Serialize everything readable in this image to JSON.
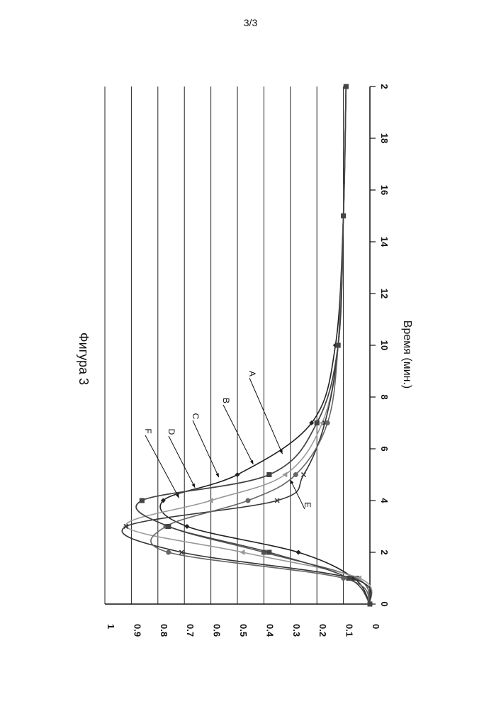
{
  "page_number": "3/3",
  "chart_data": {
    "type": "line",
    "title": "Фигура 3",
    "xlabel": "Время (мин.)",
    "ylabel": "",
    "xlim": [
      0,
      20
    ],
    "ylim": [
      0,
      1
    ],
    "x_ticks": [
      "0",
      "2",
      "4",
      "6",
      "8",
      "10",
      "12",
      "14",
      "16",
      "18",
      "2"
    ],
    "y_ticks": [
      "0",
      "0.1",
      "0.2",
      "0.3",
      "0.4",
      "0.5",
      "0.6",
      "0.7",
      "0.8",
      "0.9",
      "1"
    ],
    "grid": "horizontal",
    "series": [
      {
        "name": "A",
        "color": "#222222",
        "marker": "diamond",
        "x": [
          0,
          1,
          2,
          3,
          4,
          5,
          7,
          10,
          15,
          20
        ],
        "y": [
          0,
          0.06,
          0.27,
          0.69,
          0.78,
          0.5,
          0.22,
          0.13,
          0.1,
          0.09
        ]
      },
      {
        "name": "B",
        "color": "#555555",
        "marker": "square",
        "x": [
          0,
          1,
          2,
          3,
          4,
          5,
          7,
          10,
          15,
          20
        ],
        "y": [
          0,
          0.05,
          0.4,
          0.76,
          0.86,
          0.38,
          0.2,
          0.12,
          0.1,
          0.09
        ]
      },
      {
        "name": "C",
        "color": "#999999",
        "marker": "triangle",
        "x": [
          0,
          1,
          2,
          3,
          4,
          5,
          7,
          10,
          15,
          20
        ],
        "y": [
          0,
          0.04,
          0.48,
          0.92,
          0.6,
          0.32,
          0.18,
          0.12,
          0.1,
          0.09
        ]
      },
      {
        "name": "D",
        "color": "#333333",
        "marker": "star",
        "x": [
          0,
          1,
          2,
          3,
          4,
          5,
          7,
          10,
          15,
          20
        ],
        "y": [
          0,
          0.07,
          0.71,
          0.92,
          0.35,
          0.25,
          0.17,
          0.12,
          0.1,
          0.09
        ]
      },
      {
        "name": "E",
        "color": "#666666",
        "marker": "dot",
        "x": [
          0,
          1,
          2,
          3,
          4,
          5,
          7,
          10,
          15,
          20
        ],
        "y": [
          0,
          0.1,
          0.76,
          0.77,
          0.46,
          0.28,
          0.16,
          0.12,
          0.1,
          0.09
        ]
      },
      {
        "name": "F",
        "color": "#444444",
        "marker": "square",
        "x": [
          0,
          1,
          2,
          3,
          4,
          5,
          7,
          10,
          15,
          20
        ],
        "y": [
          0,
          0.08,
          0.38,
          0.76,
          0.86,
          0.38,
          0.2,
          0.12,
          0.1,
          0.09
        ]
      }
    ],
    "annotations": [
      "A",
      "B",
      "C",
      "D",
      "E",
      "F"
    ]
  }
}
